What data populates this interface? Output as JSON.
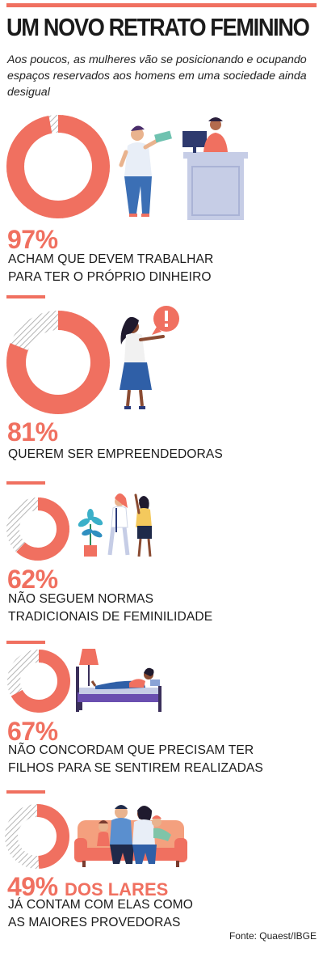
{
  "header": {
    "title": "UM NOVO RETRATO FEMININO",
    "subtitle": "Aos poucos, as mulheres vão se posicionando e ocupando espaços reservados aos homens em uma sociedade ainda desigual"
  },
  "colors": {
    "accent": "#f07060",
    "hatch": "#b5b5b5",
    "dark_text": "#1b1b1b"
  },
  "stats": [
    {
      "value": "97%",
      "suffix": "",
      "label_lines": [
        "ACHAM QUE DEVEM TRABALHAR",
        "PARA TER O PRÓPRIO DINHEIRO"
      ],
      "fraction": 0.97,
      "illustration": "woman-at-desk-receiving-money-icon"
    },
    {
      "value": "81%",
      "suffix": "",
      "label_lines": [
        "QUEREM SER EMPREENDEDORAS"
      ],
      "fraction": 0.81,
      "illustration": "woman-with-exclamation-bubble-icon"
    },
    {
      "value": "62%",
      "suffix": "",
      "label_lines": [
        "NÃO SEGUEM NORMAS",
        "TRADICIONAIS DE FEMINILIDADE"
      ],
      "fraction": 0.62,
      "illustration": "two-women-with-plant-icon"
    },
    {
      "value": "67%",
      "suffix": "",
      "label_lines": [
        "NÃO CONCORDAM QUE PRECISAM TER",
        "FILHOS PARA SE SENTIREM REALIZADAS"
      ],
      "fraction": 0.67,
      "illustration": "woman-lying-on-bed-with-laptop-icon"
    },
    {
      "value": "49%",
      "suffix": "DOS LARES",
      "label_lines": [
        "JÁ CONTAM COM ELAS COMO",
        "AS MAIORES PROVEDORAS"
      ],
      "fraction": 0.49,
      "illustration": "family-on-sofa-icon"
    }
  ],
  "footer": {
    "source": "Fonte: Quaest/IBGE"
  }
}
